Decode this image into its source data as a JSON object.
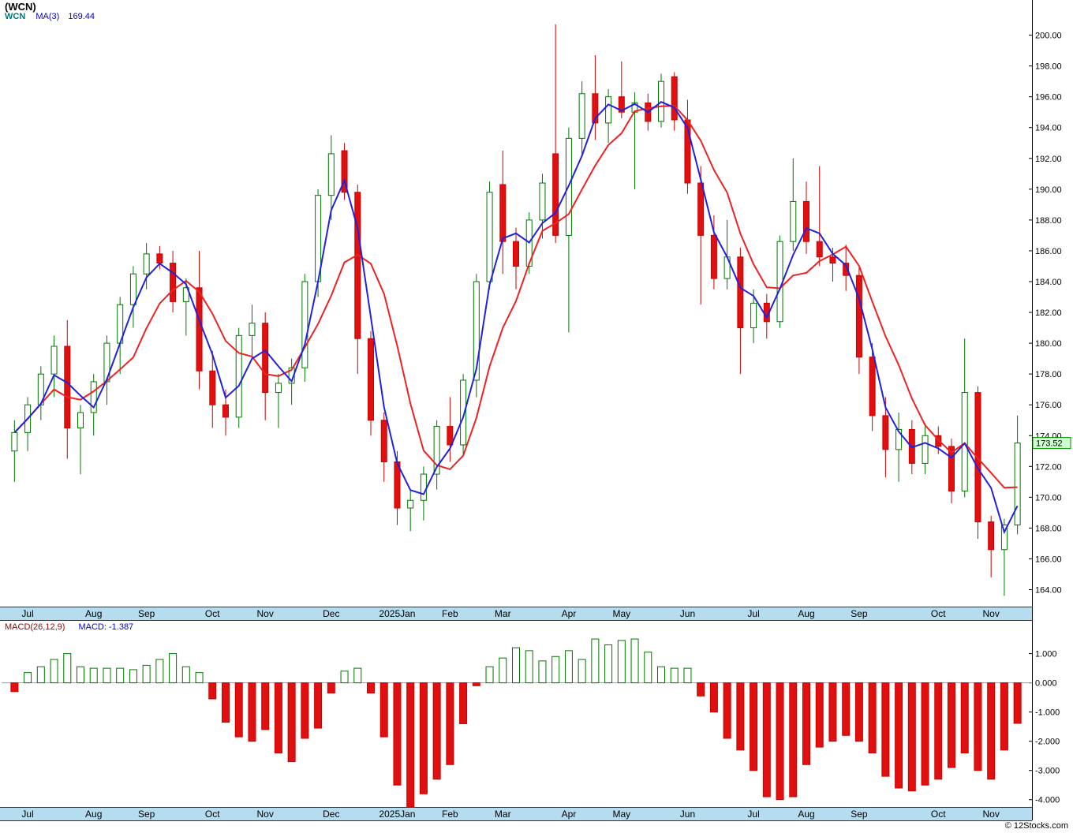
{
  "title": "(WCN)",
  "watermark": "© 12Stocks.com",
  "last_price_label": "173.52",
  "legend": {
    "symbol": "WCN",
    "ma_label": "MA(3)",
    "ma_value": "169.44"
  },
  "macd_legend": {
    "label": "MACD(26,12,9)",
    "value": "MACD: -1.387"
  },
  "colors": {
    "up": "#007700",
    "up_fill": "#ffffff",
    "down": "#e01010",
    "down_stroke": "#cc0000",
    "ma_fast": "#2222dd",
    "ma_slow": "#ee2222",
    "axis_band": "#b5ddef",
    "band_border": "#333333",
    "price_tag_fill": "#ccffcc",
    "price_tag_border": "#008800",
    "macd_pos": "#007700",
    "macd_neg": "#e01010",
    "zero_line": "#999999",
    "axis_line": "#000000",
    "tick_text": "#000000"
  },
  "chart_data": {
    "type": "candlestick",
    "symbol": "WCN",
    "x_labels": [
      {
        "label": "Jul",
        "i": 1
      },
      {
        "label": "Aug",
        "i": 6
      },
      {
        "label": "Sep",
        "i": 10
      },
      {
        "label": "Oct",
        "i": 15
      },
      {
        "label": "Nov",
        "i": 19
      },
      {
        "label": "Dec",
        "i": 24
      },
      {
        "label": "2025Jan",
        "i": 29
      },
      {
        "label": "Feb",
        "i": 33
      },
      {
        "label": "Mar",
        "i": 37
      },
      {
        "label": "Apr",
        "i": 42
      },
      {
        "label": "May",
        "i": 46
      },
      {
        "label": "Jun",
        "i": 51
      },
      {
        "label": "Jul",
        "i": 56
      },
      {
        "label": "Aug",
        "i": 60
      },
      {
        "label": "Sep",
        "i": 64
      },
      {
        "label": "Oct",
        "i": 70
      },
      {
        "label": "Nov",
        "i": 74
      }
    ],
    "price_panel": {
      "ylim": [
        162.9,
        200.9
      ],
      "y_ticks": [
        200,
        198,
        196,
        194,
        192,
        190,
        188,
        186,
        184,
        182,
        180,
        178,
        176,
        174,
        172,
        170,
        168,
        166,
        164
      ],
      "ma_fast_period": 3,
      "ma_slow_period": 6,
      "last_price": 173.52,
      "candles": [
        [
          173.0,
          175.0,
          171.0,
          174.2
        ],
        [
          174.2,
          176.5,
          173.0,
          176.0
        ],
        [
          176.0,
          178.5,
          175.0,
          178.0
        ],
        [
          178.0,
          180.5,
          176.5,
          179.8
        ],
        [
          179.8,
          181.5,
          172.5,
          174.5
        ],
        [
          174.5,
          176.0,
          171.5,
          175.5
        ],
        [
          175.5,
          178.0,
          174.0,
          177.5
        ],
        [
          177.5,
          180.5,
          176.0,
          180.0
        ],
        [
          180.0,
          183.0,
          178.0,
          182.5
        ],
        [
          182.5,
          185.0,
          181.0,
          184.5
        ],
        [
          184.5,
          186.5,
          183.5,
          185.8
        ],
        [
          185.8,
          186.3,
          184.8,
          185.2
        ],
        [
          185.2,
          186.0,
          182.0,
          182.7
        ],
        [
          182.7,
          184.2,
          180.5,
          183.6
        ],
        [
          183.6,
          186.0,
          177.0,
          178.2
        ],
        [
          178.2,
          179.5,
          174.5,
          176.0
        ],
        [
          176.0,
          177.0,
          174.0,
          175.2
        ],
        [
          175.2,
          181.0,
          174.5,
          180.5
        ],
        [
          180.5,
          182.5,
          179.0,
          181.3
        ],
        [
          181.3,
          182.0,
          175.0,
          176.8
        ],
        [
          176.8,
          178.0,
          174.5,
          177.4
        ],
        [
          177.4,
          179.0,
          176.0,
          178.4
        ],
        [
          178.4,
          184.5,
          177.5,
          184.0
        ],
        [
          184.0,
          190.0,
          183.0,
          189.6
        ],
        [
          189.6,
          193.5,
          188.0,
          192.3
        ],
        [
          192.5,
          193.0,
          189.3,
          189.8
        ],
        [
          189.8,
          190.3,
          178.0,
          180.3
        ],
        [
          180.3,
          180.8,
          174.0,
          175.0
        ],
        [
          175.0,
          175.5,
          171.0,
          172.3
        ],
        [
          172.3,
          173.0,
          168.2,
          169.3
        ],
        [
          169.3,
          170.5,
          167.8,
          169.8
        ],
        [
          169.8,
          172.0,
          168.5,
          171.5
        ],
        [
          171.5,
          175.0,
          170.5,
          174.6
        ],
        [
          174.6,
          176.5,
          172.3,
          173.4
        ],
        [
          173.4,
          178.0,
          172.8,
          177.6
        ],
        [
          177.6,
          184.5,
          176.5,
          184.0
        ],
        [
          184.0,
          190.5,
          183.5,
          189.8
        ],
        [
          190.3,
          192.5,
          184.5,
          186.6
        ],
        [
          186.6,
          187.5,
          183.5,
          185.0
        ],
        [
          185.0,
          188.5,
          184.5,
          188.0
        ],
        [
          188.0,
          191.0,
          186.8,
          190.4
        ],
        [
          192.3,
          200.7,
          186.5,
          187.0
        ],
        [
          187.0,
          194.0,
          180.7,
          193.3
        ],
        [
          193.3,
          197.0,
          192.3,
          196.2
        ],
        [
          196.2,
          198.7,
          193.2,
          194.3
        ],
        [
          194.3,
          196.5,
          193.0,
          196.0
        ],
        [
          196.0,
          198.3,
          194.6,
          195.0
        ],
        [
          195.0,
          196.3,
          190.0,
          195.6
        ],
        [
          195.6,
          196.2,
          193.8,
          194.4
        ],
        [
          194.4,
          197.5,
          194.0,
          197.0
        ],
        [
          197.3,
          197.6,
          193.8,
          194.5
        ],
        [
          194.5,
          195.8,
          189.7,
          190.4
        ],
        [
          190.4,
          191.5,
          182.5,
          187.0
        ],
        [
          187.0,
          188.3,
          183.5,
          184.2
        ],
        [
          184.2,
          188.0,
          183.5,
          185.6
        ],
        [
          185.6,
          186.2,
          178.0,
          181.0
        ],
        [
          181.0,
          183.5,
          180.0,
          182.6
        ],
        [
          182.6,
          183.2,
          180.3,
          181.4
        ],
        [
          181.4,
          187.0,
          181.0,
          186.6
        ],
        [
          186.6,
          192.0,
          186.0,
          189.2
        ],
        [
          189.2,
          190.5,
          185.8,
          186.6
        ],
        [
          186.6,
          191.5,
          185.0,
          185.6
        ],
        [
          185.6,
          186.2,
          184.0,
          185.2
        ],
        [
          185.2,
          186.4,
          183.4,
          184.4
        ],
        [
          184.4,
          184.9,
          178.0,
          179.1
        ],
        [
          179.1,
          180.0,
          174.3,
          175.3
        ],
        [
          175.3,
          176.5,
          171.3,
          173.1
        ],
        [
          173.1,
          175.5,
          171.0,
          174.4
        ],
        [
          174.4,
          175.0,
          171.5,
          172.2
        ],
        [
          172.2,
          174.8,
          171.5,
          174.0
        ],
        [
          174.0,
          174.6,
          172.8,
          173.3
        ],
        [
          173.3,
          173.8,
          169.6,
          170.4
        ],
        [
          170.4,
          180.3,
          170.0,
          176.8
        ],
        [
          176.8,
          177.2,
          167.3,
          168.4
        ],
        [
          168.4,
          168.8,
          164.8,
          166.6
        ],
        [
          166.6,
          168.6,
          163.6,
          168.2
        ],
        [
          168.2,
          175.3,
          167.6,
          173.52
        ]
      ]
    },
    "macd_panel": {
      "params": "26,12,9",
      "last_value": -1.387,
      "ylim": [
        -4.25,
        2.15
      ],
      "y_ticks": [
        1.0,
        0.0,
        -1.0,
        -2.0,
        -3.0,
        -4.0
      ],
      "values": [
        -0.3,
        0.35,
        0.55,
        0.8,
        1.0,
        0.55,
        0.5,
        0.5,
        0.5,
        0.45,
        0.6,
        0.8,
        1.0,
        0.55,
        0.35,
        -0.55,
        -1.35,
        -1.85,
        -2.0,
        -1.6,
        -2.4,
        -2.7,
        -1.9,
        -1.55,
        -0.35,
        0.4,
        0.5,
        -0.35,
        -1.85,
        -3.5,
        -4.25,
        -3.8,
        -3.3,
        -2.8,
        -1.4,
        -0.1,
        0.55,
        0.85,
        1.2,
        1.1,
        0.75,
        0.9,
        1.1,
        0.8,
        1.5,
        1.3,
        1.45,
        1.5,
        1.05,
        0.55,
        0.5,
        0.5,
        -0.45,
        -1.0,
        -1.9,
        -2.3,
        -3.0,
        -3.9,
        -4.0,
        -3.9,
        -2.8,
        -2.2,
        -2.0,
        -1.8,
        -2.0,
        -2.4,
        -3.2,
        -3.6,
        -3.7,
        -3.5,
        -3.3,
        -2.9,
        -2.4,
        -3.0,
        -3.3,
        -2.3,
        -1.387
      ]
    }
  }
}
